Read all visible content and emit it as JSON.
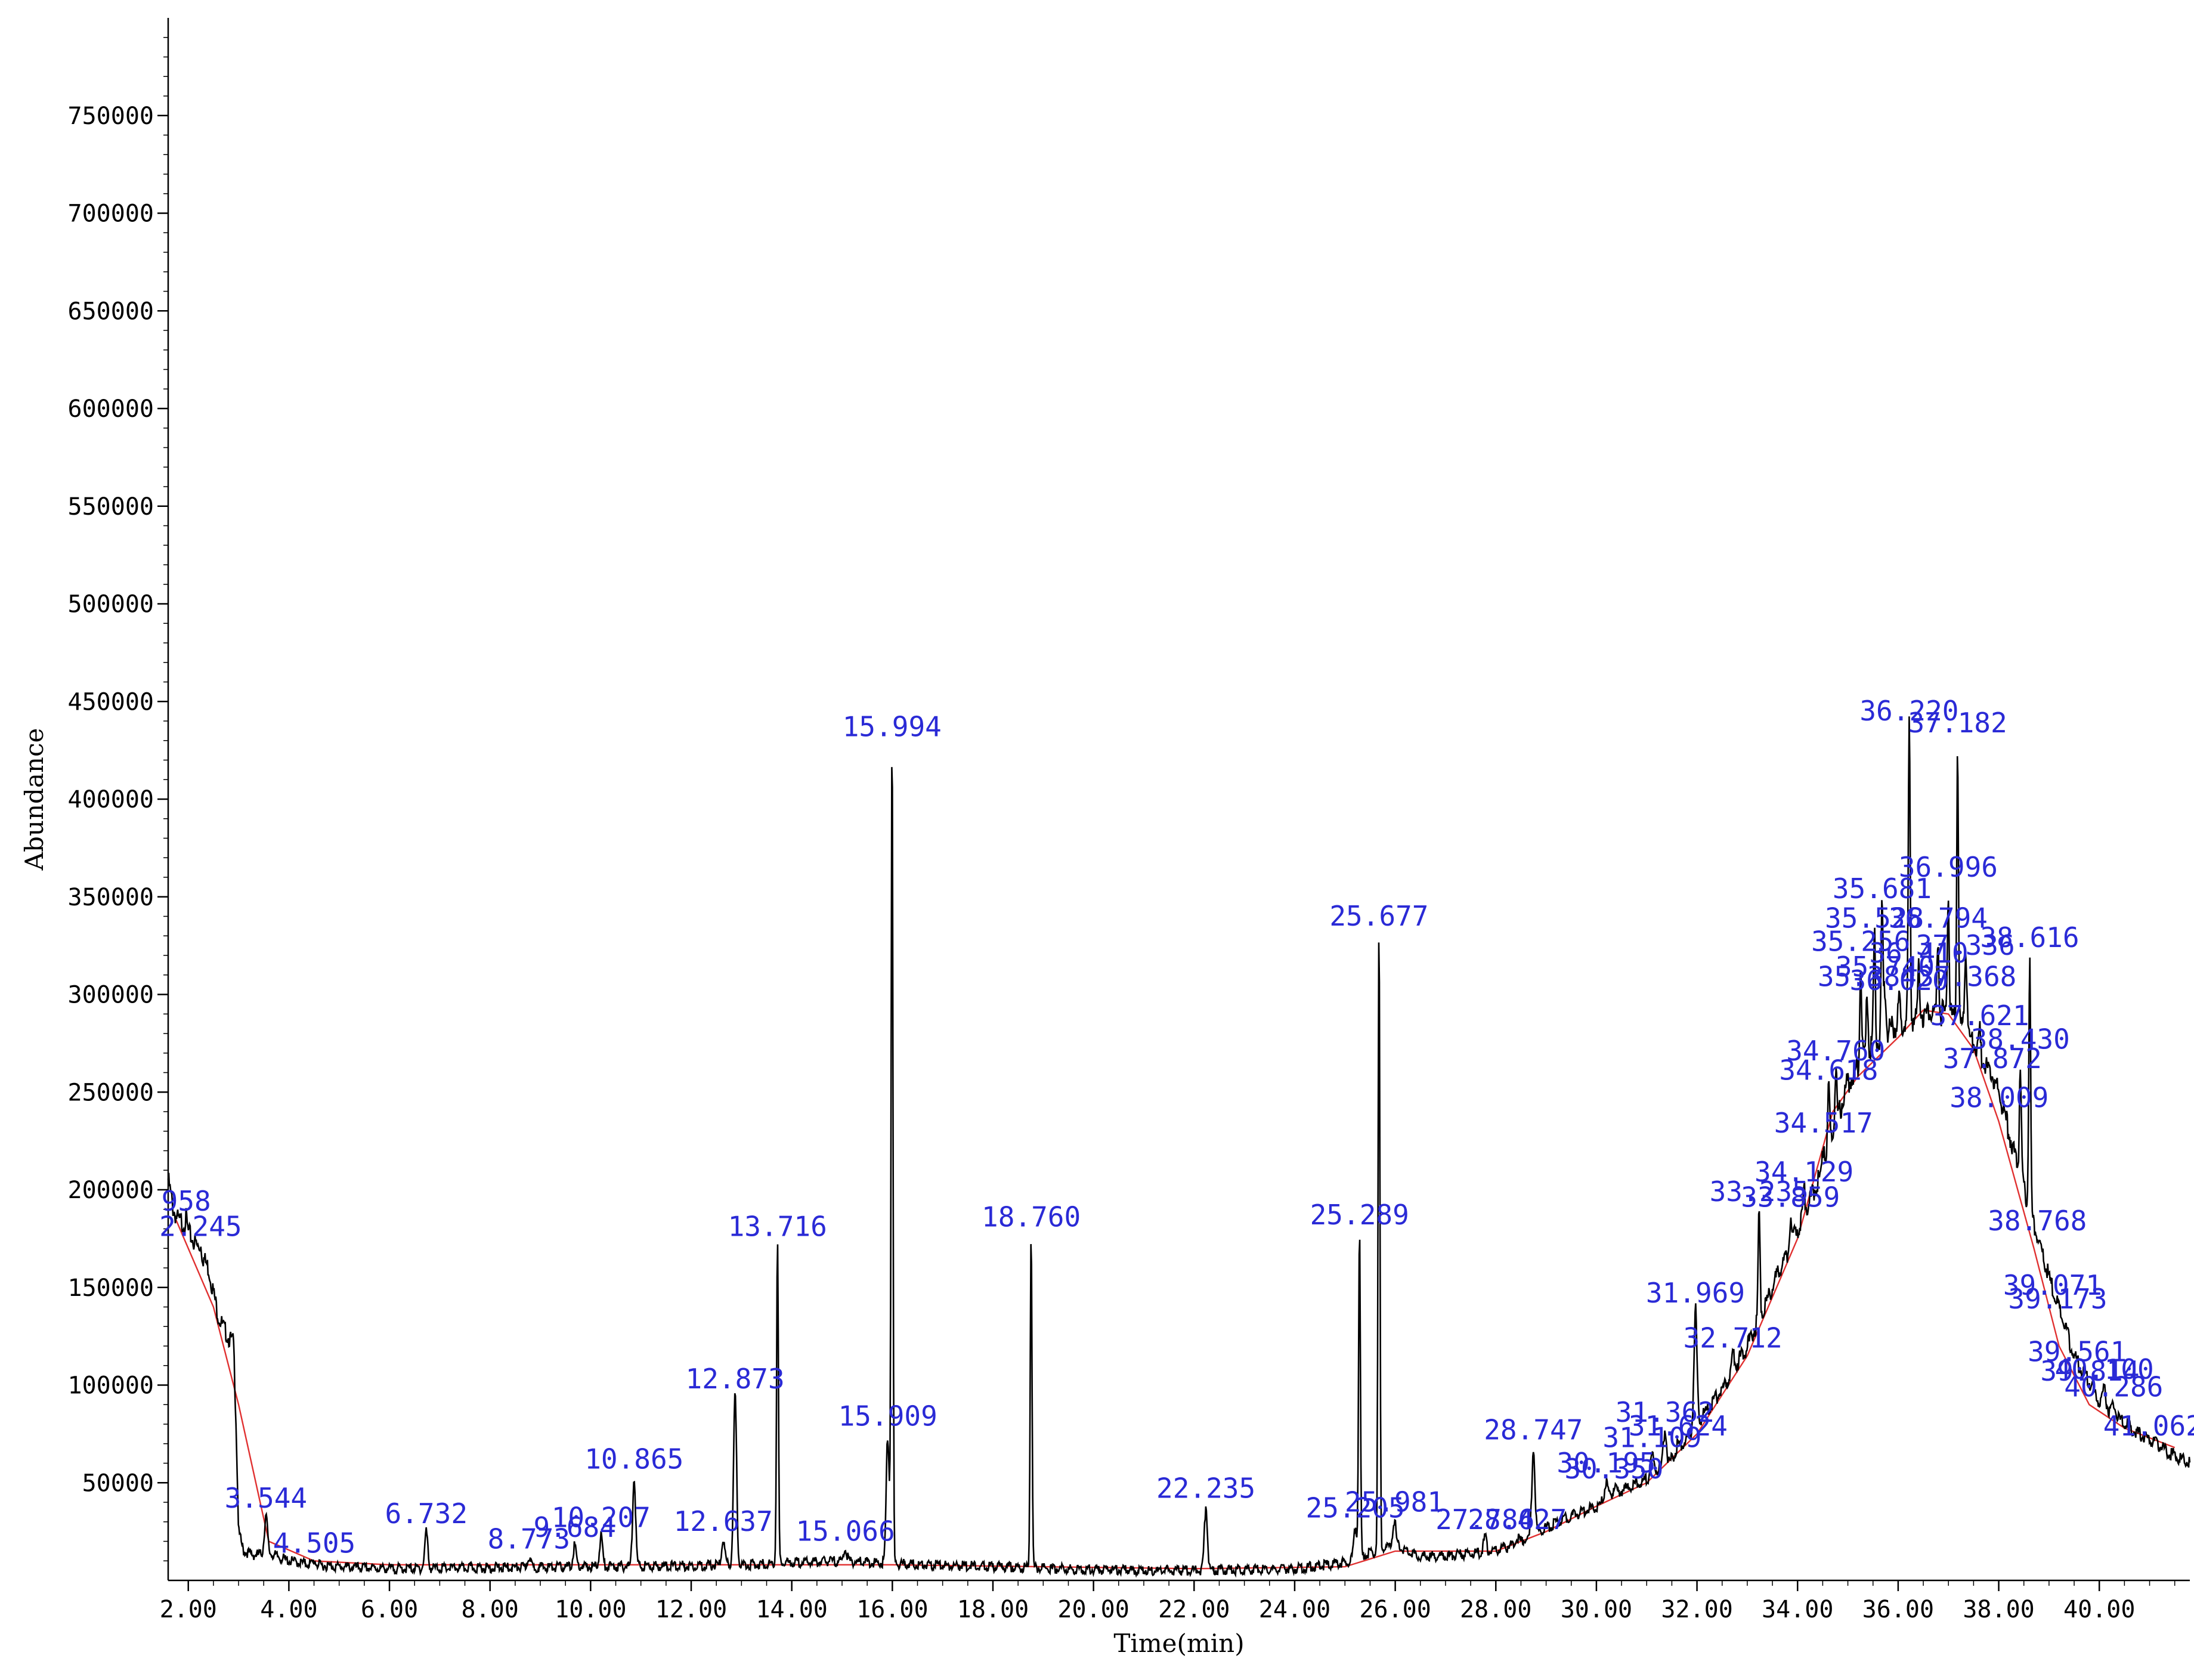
{
  "chart_data": {
    "type": "line",
    "title": "",
    "xlabel": "Time(min)",
    "ylabel": "Abundance",
    "xlim": [
      1.6,
      41.8
    ],
    "ylim": [
      0,
      800000
    ],
    "x_ticks": [
      {
        "value": 2,
        "label": "2.00"
      },
      {
        "value": 4,
        "label": "4.00"
      },
      {
        "value": 6,
        "label": "6.00"
      },
      {
        "value": 8,
        "label": "8.00"
      },
      {
        "value": 10,
        "label": "10.00"
      },
      {
        "value": 12,
        "label": "12.00"
      },
      {
        "value": 14,
        "label": "14.00"
      },
      {
        "value": 16,
        "label": "16.00"
      },
      {
        "value": 18,
        "label": "18.00"
      },
      {
        "value": 20,
        "label": "20.00"
      },
      {
        "value": 22,
        "label": "22.00"
      },
      {
        "value": 24,
        "label": "24.00"
      },
      {
        "value": 26,
        "label": "26.00"
      },
      {
        "value": 28,
        "label": "28.00"
      },
      {
        "value": 30,
        "label": "30.00"
      },
      {
        "value": 32,
        "label": "32.00"
      },
      {
        "value": 34,
        "label": "34.00"
      },
      {
        "value": 36,
        "label": "36.00"
      },
      {
        "value": 38,
        "label": "38.00"
      },
      {
        "value": 40,
        "label": "40.00"
      }
    ],
    "y_ticks": [
      {
        "value": 50000,
        "label": "50000"
      },
      {
        "value": 100000,
        "label": "100000"
      },
      {
        "value": 150000,
        "label": "150000"
      },
      {
        "value": 200000,
        "label": "200000"
      },
      {
        "value": 250000,
        "label": "250000"
      },
      {
        "value": 300000,
        "label": "300000"
      },
      {
        "value": 350000,
        "label": "350000"
      },
      {
        "value": 400000,
        "label": "400000"
      },
      {
        "value": 450000,
        "label": "450000"
      },
      {
        "value": 500000,
        "label": "500000"
      },
      {
        "value": 550000,
        "label": "550000"
      },
      {
        "value": 600000,
        "label": "600000"
      },
      {
        "value": 650000,
        "label": "650000"
      },
      {
        "value": 700000,
        "label": "700000"
      },
      {
        "value": 750000,
        "label": "750000"
      }
    ],
    "grid": false,
    "series_color": "#000000",
    "baseline_color": "#e03030",
    "label_color": "#2a2ad6",
    "baseline": [
      [
        1.75,
        185000
      ],
      [
        2.5,
        140000
      ],
      [
        3.0,
        90000
      ],
      [
        3.6,
        20000
      ],
      [
        4.5,
        10000
      ],
      [
        6.0,
        8000
      ],
      [
        10.0,
        8000
      ],
      [
        16.0,
        8000
      ],
      [
        22.0,
        6000
      ],
      [
        25.0,
        7000
      ],
      [
        26.0,
        15000
      ],
      [
        28.0,
        15000
      ],
      [
        29.0,
        25000
      ],
      [
        30.0,
        38000
      ],
      [
        31.0,
        50000
      ],
      [
        32.0,
        75000
      ],
      [
        33.0,
        115000
      ],
      [
        34.0,
        175000
      ],
      [
        34.7,
        240000
      ],
      [
        35.2,
        258000
      ],
      [
        36.0,
        278000
      ],
      [
        36.5,
        292000
      ],
      [
        37.0,
        290000
      ],
      [
        37.5,
        272000
      ],
      [
        38.0,
        235000
      ],
      [
        38.7,
        170000
      ],
      [
        39.2,
        120000
      ],
      [
        39.8,
        90000
      ],
      [
        40.5,
        78000
      ],
      [
        41.5,
        68000
      ]
    ],
    "background": [
      [
        1.6,
        205000
      ],
      [
        1.7,
        190000
      ],
      [
        1.8,
        184000
      ],
      [
        1.9,
        183000
      ],
      [
        2.0,
        178000
      ],
      [
        2.2,
        170000
      ],
      [
        2.4,
        160000
      ],
      [
        2.6,
        135000
      ],
      [
        2.8,
        124000
      ],
      [
        2.9,
        122000
      ],
      [
        2.95,
        80000
      ],
      [
        3.0,
        25000
      ],
      [
        3.1,
        15000
      ],
      [
        3.3,
        13000
      ],
      [
        3.6,
        14000
      ],
      [
        4.0,
        10000
      ],
      [
        4.5,
        8000
      ],
      [
        5.0,
        7000
      ],
      [
        6.0,
        6000
      ],
      [
        8.0,
        6500
      ],
      [
        10.0,
        7000
      ],
      [
        12.0,
        7500
      ],
      [
        13.0,
        8000
      ],
      [
        14.0,
        9000
      ],
      [
        15.0,
        10000
      ],
      [
        16.0,
        8500
      ],
      [
        18.0,
        7000
      ],
      [
        20.0,
        5500
      ],
      [
        22.0,
        5000
      ],
      [
        24.0,
        6000
      ],
      [
        25.0,
        9000
      ],
      [
        25.5,
        14000
      ],
      [
        26.0,
        18000
      ],
      [
        26.5,
        12000
      ],
      [
        27.0,
        12500
      ],
      [
        28.0,
        15000
      ],
      [
        28.5,
        20000
      ],
      [
        29.0,
        27000
      ],
      [
        29.5,
        33000
      ],
      [
        30.0,
        38000
      ],
      [
        30.5,
        46000
      ],
      [
        31.0,
        52000
      ],
      [
        31.5,
        62000
      ],
      [
        32.0,
        80000
      ],
      [
        32.5,
        98000
      ],
      [
        33.0,
        120000
      ],
      [
        33.5,
        150000
      ],
      [
        34.0,
        180000
      ],
      [
        34.5,
        210000
      ],
      [
        35.0,
        255000
      ],
      [
        35.5,
        275000
      ],
      [
        36.0,
        285000
      ],
      [
        36.5,
        290000
      ],
      [
        37.0,
        290000
      ],
      [
        37.5,
        275000
      ],
      [
        38.0,
        250000
      ],
      [
        38.5,
        200000
      ],
      [
        39.0,
        155000
      ],
      [
        39.5,
        115000
      ],
      [
        40.0,
        92000
      ],
      [
        40.5,
        80000
      ],
      [
        41.0,
        72000
      ],
      [
        41.5,
        64000
      ],
      [
        41.8,
        60000
      ]
    ],
    "peaks": [
      {
        "rt": 1.958,
        "label": "958",
        "abundance": 185000
      },
      {
        "rt": 2.245,
        "label": "2.245",
        "abundance": 172000
      },
      {
        "rt": 3.544,
        "label": "3.544",
        "abundance": 33000
      },
      {
        "rt": 4.505,
        "label": "4.505",
        "abundance": 10000
      },
      {
        "rt": 6.732,
        "label": "6.732",
        "abundance": 25000
      },
      {
        "rt": 8.773,
        "label": "8.773",
        "abundance": 12000
      },
      {
        "rt": 9.684,
        "label": "9.684",
        "abundance": 18000
      },
      {
        "rt": 10.207,
        "label": "10.207",
        "abundance": 23000
      },
      {
        "rt": 10.865,
        "label": "10.865",
        "abundance": 53000
      },
      {
        "rt": 12.637,
        "label": "12.637",
        "abundance": 21000
      },
      {
        "rt": 12.873,
        "label": "12.873",
        "abundance": 94000
      },
      {
        "rt": 13.716,
        "label": "13.716",
        "abundance": 172000
      },
      {
        "rt": 15.066,
        "label": "15.066",
        "abundance": 16000
      },
      {
        "rt": 15.909,
        "label": "15.909",
        "abundance": 75000
      },
      {
        "rt": 15.994,
        "label": "15.994",
        "abundance": 428000
      },
      {
        "rt": 18.76,
        "label": "18.760",
        "abundance": 177000
      },
      {
        "rt": 22.235,
        "label": "22.235",
        "abundance": 38000
      },
      {
        "rt": 25.205,
        "label": "25.205",
        "abundance": 28000
      },
      {
        "rt": 25.289,
        "label": "25.289",
        "abundance": 178000
      },
      {
        "rt": 25.677,
        "label": "25.677",
        "abundance": 331000
      },
      {
        "rt": 25.981,
        "label": "25.981",
        "abundance": 31000
      },
      {
        "rt": 27.786,
        "label": "27.786",
        "abundance": 22000
      },
      {
        "rt": 28.427,
        "label": "28.427",
        "abundance": 22000
      },
      {
        "rt": 28.747,
        "label": "28.747",
        "abundance": 68000
      },
      {
        "rt": 30.195,
        "label": "30.195",
        "abundance": 51000
      },
      {
        "rt": 30.35,
        "label": "30.350",
        "abundance": 48000
      },
      {
        "rt": 31.109,
        "label": "31.109",
        "abundance": 64000
      },
      {
        "rt": 31.362,
        "label": "31.362",
        "abundance": 77000
      },
      {
        "rt": 31.624,
        "label": "31.624",
        "abundance": 70000
      },
      {
        "rt": 31.969,
        "label": "31.969",
        "abundance": 138000
      },
      {
        "rt": 32.712,
        "label": "32.712",
        "abundance": 115000
      },
      {
        "rt": 33.235,
        "label": "33.235",
        "abundance": 190000
      },
      {
        "rt": 33.859,
        "label": "33.859",
        "abundance": 187000
      },
      {
        "rt": 34.129,
        "label": "34.129",
        "abundance": 200000
      },
      {
        "rt": 34.517,
        "label": "34.517",
        "abundance": 225000
      },
      {
        "rt": 34.618,
        "label": "34.618",
        "abundance": 252000
      },
      {
        "rt": 34.76,
        "label": "34.760",
        "abundance": 262000
      },
      {
        "rt": 35.256,
        "label": "35.256",
        "abundance": 318000
      },
      {
        "rt": 35.384,
        "label": "35.384",
        "abundance": 300000
      },
      {
        "rt": 35.528,
        "label": "35.528",
        "abundance": 330000
      },
      {
        "rt": 35.681,
        "label": "35.681",
        "abundance": 345000
      },
      {
        "rt": 35.74,
        "label": "35.740",
        "abundance": 305000
      },
      {
        "rt": 36.02,
        "label": "36.020",
        "abundance": 298000
      },
      {
        "rt": 36.22,
        "label": "36.220",
        "abundance": 436000
      },
      {
        "rt": 36.41,
        "label": "36.410",
        "abundance": 312000
      },
      {
        "rt": 36.794,
        "label": "36.794",
        "abundance": 330000
      },
      {
        "rt": 36.996,
        "label": "36.996",
        "abundance": 356000
      },
      {
        "rt": 37.182,
        "label": "37.182",
        "abundance": 430000
      },
      {
        "rt": 37.336,
        "label": "37.336",
        "abundance": 316000
      },
      {
        "rt": 37.368,
        "label": "37.368",
        "abundance": 300000
      },
      {
        "rt": 37.621,
        "label": "37.621",
        "abundance": 280000
      },
      {
        "rt": 37.872,
        "label": "37.872",
        "abundance": 258000
      },
      {
        "rt": 38.009,
        "label": "38.009",
        "abundance": 238000
      },
      {
        "rt": 38.43,
        "label": "38.430",
        "abundance": 268000
      },
      {
        "rt": 38.616,
        "label": "38.616",
        "abundance": 320000
      },
      {
        "rt": 38.768,
        "label": "38.768",
        "abundance": 175000
      },
      {
        "rt": 39.071,
        "label": "39.071",
        "abundance": 142000
      },
      {
        "rt": 39.173,
        "label": "39.173",
        "abundance": 135000
      },
      {
        "rt": 39.561,
        "label": "39.561",
        "abundance": 108000
      },
      {
        "rt": 39.814,
        "label": "39.814",
        "abundance": 98000
      },
      {
        "rt": 40.1,
        "label": "40.100",
        "abundance": 99000
      },
      {
        "rt": 40.286,
        "label": "40.286",
        "abundance": 90000
      },
      {
        "rt": 41.062,
        "label": "41.062",
        "abundance": 70000
      }
    ]
  }
}
